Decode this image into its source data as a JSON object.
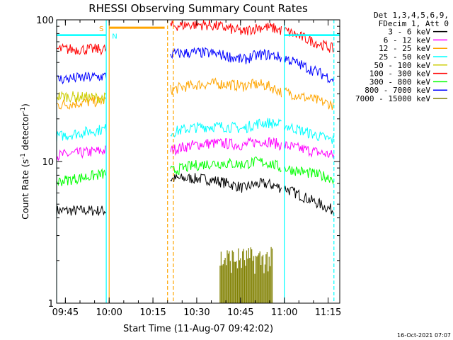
{
  "chart_data": {
    "type": "line",
    "title": "RHESSI Observing Summary Count Rates",
    "xlabel": "Start Time (11-Aug-07 09:42:02)",
    "ylabel": "Count Rate (s",
    "ylabel_sup": "-1",
    "ylabel_tail": " detector",
    "ylabel_sup2": "-1",
    "ylabel_end": ")",
    "y_scale": "log",
    "ylim": [
      1,
      100
    ],
    "y_ticks": [
      "1",
      "10",
      "100"
    ],
    "xlim": [
      "09:42",
      "11:19"
    ],
    "x_ticks": [
      "09:45",
      "10:00",
      "10:15",
      "10:30",
      "10:45",
      "11:00",
      "11:15"
    ],
    "grid": false,
    "legend_header": [
      "Det 1,3,4,5,6,9,",
      "FDecim 1, Att 0"
    ],
    "legend_placement": "right",
    "series": [
      {
        "name": "3 - 6 keV",
        "color": "#000000",
        "levels": [
          4.5,
          4.5,
          7.5,
          6.5,
          6.5,
          4.5
        ]
      },
      {
        "name": "6 - 12 keV",
        "color": "#ff00ff",
        "levels": [
          11,
          12,
          12,
          13,
          13,
          11
        ]
      },
      {
        "name": "12 - 25 keV",
        "color": "#ffa500",
        "levels": [
          25,
          27,
          32,
          34,
          31,
          25
        ]
      },
      {
        "name": "25 - 50 keV",
        "color": "#00ffff",
        "levels": [
          15,
          17,
          16,
          17,
          18,
          14
        ]
      },
      {
        "name": "50 - 100 keV",
        "color": "#cccc00",
        "levels": [
          29,
          28,
          0,
          0,
          0,
          0
        ]
      },
      {
        "name": "100 - 300 keV",
        "color": "#ff0000",
        "levels": [
          62,
          62,
          90,
          82,
          84,
          62
        ]
      },
      {
        "name": "300 - 800 keV",
        "color": "#00ff00",
        "levels": [
          7.2,
          8.2,
          8.5,
          9.5,
          9,
          7.6
        ]
      },
      {
        "name": "800 - 7000 keV",
        "color": "#0000ff",
        "levels": [
          38,
          40,
          57,
          52,
          54,
          38
        ]
      },
      {
        "name": "7000 - 15000 keV",
        "color": "#808000",
        "levels": [
          0,
          0,
          0,
          0,
          1.8,
          0
        ]
      }
    ],
    "annotations": [
      {
        "text": "S",
        "color": "#ffa500"
      },
      {
        "text": "N",
        "color": "#00ffff"
      }
    ],
    "footer": "16-Oct-2021 07:07"
  }
}
